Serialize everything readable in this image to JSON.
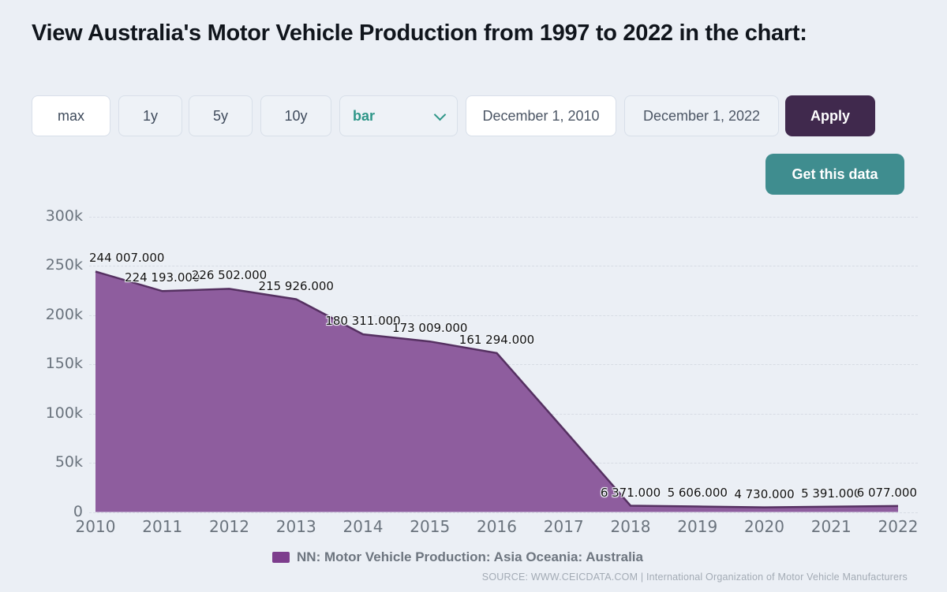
{
  "page": {
    "title": "View Australia's Motor Vehicle Production from 1997 to 2022 in the chart:",
    "background_color": "#ebeff5"
  },
  "toolbar": {
    "range_buttons": [
      {
        "label": "max",
        "active": true
      },
      {
        "label": "1y",
        "active": false
      },
      {
        "label": "5y",
        "active": false
      },
      {
        "label": "10y",
        "active": false
      }
    ],
    "chart_type_select": {
      "value": "bar",
      "text_color": "#2e9688"
    },
    "date_from": "December 1, 2010",
    "date_to": "December 1, 2022",
    "apply_label": "Apply",
    "apply_color": "#40294d",
    "get_data_label": "Get this data",
    "get_data_color": "#3f8d8f"
  },
  "chart_data": {
    "type": "area",
    "series_name": "NN: Motor Vehicle Production: Asia Oceania: Australia",
    "x": [
      "2010",
      "2011",
      "2012",
      "2013",
      "2014",
      "2015",
      "2016",
      "2017",
      "2018",
      "2019",
      "2020",
      "2021",
      "2022"
    ],
    "points": [
      {
        "year": "2010",
        "value": 244007,
        "label": "244 007.000"
      },
      {
        "year": "2011",
        "value": 224193,
        "label": "224 193.000"
      },
      {
        "year": "2012",
        "value": 226502,
        "label": "226 502.000"
      },
      {
        "year": "2013",
        "value": 215926,
        "label": "215 926.000"
      },
      {
        "year": "2014",
        "value": 180311,
        "label": "180 311.000"
      },
      {
        "year": "2015",
        "value": 173009,
        "label": "173 009.000"
      },
      {
        "year": "2016",
        "value": 161294,
        "label": "161 294.000"
      },
      {
        "year": "2017",
        "value": 84000,
        "label": null,
        "estimated": true
      },
      {
        "year": "2018",
        "value": 6371,
        "label": "6 371.000"
      },
      {
        "year": "2019",
        "value": 5606,
        "label": "5 606.000"
      },
      {
        "year": "2020",
        "value": 4730,
        "label": "4 730.000"
      },
      {
        "year": "2021",
        "value": 5391,
        "label": "5 391.000"
      },
      {
        "year": "2022",
        "value": 6077,
        "label": "6 077.000"
      }
    ],
    "ylim": [
      0,
      300000
    ],
    "yticks": [
      {
        "label": "0",
        "value": 0
      },
      {
        "label": "50k",
        "value": 50000
      },
      {
        "label": "100k",
        "value": 100000
      },
      {
        "label": "150k",
        "value": 150000
      },
      {
        "label": "200k",
        "value": 200000
      },
      {
        "label": "250k",
        "value": 250000
      },
      {
        "label": "300k",
        "value": 300000
      }
    ],
    "grid": "horizontal dashed",
    "legend_position": "bottom",
    "colors": {
      "area_fill": "#8e5d9e",
      "area_stroke": "#553061",
      "legend_swatch": "#7d3d8d"
    }
  },
  "legend": {
    "label": "NN: Motor Vehicle Production: Asia Oceania: Australia"
  },
  "footer": {
    "source": "SOURCE: WWW.CEICDATA.COM | International Organization of Motor Vehicle Manufacturers"
  }
}
